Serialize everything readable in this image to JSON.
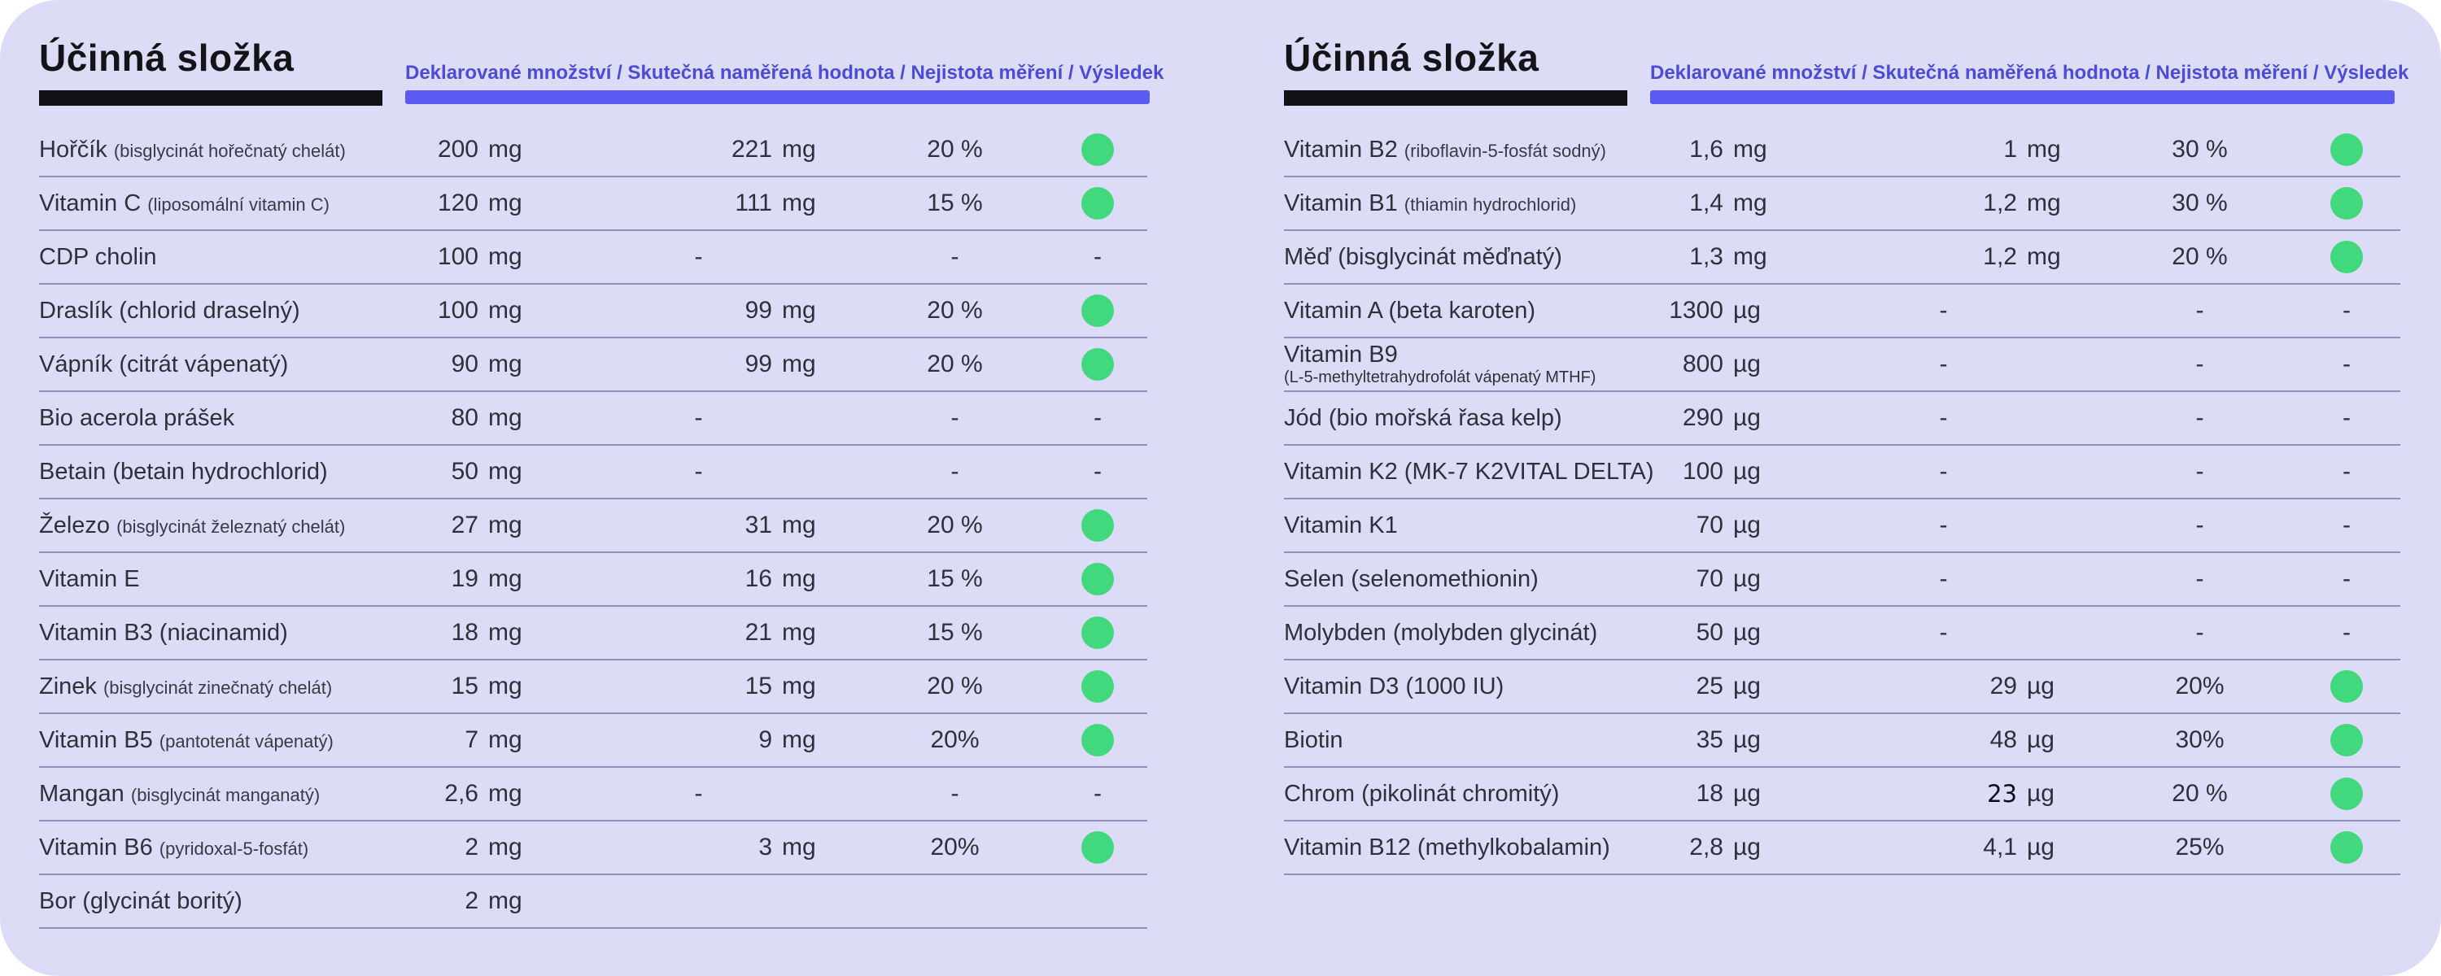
{
  "page": {
    "background": "#ffffff",
    "panel_color": "#dcdcf6",
    "accent_bar_color": "#5b5bf2",
    "header_text_color": "#4b4bd4",
    "pass_dot_color": "#42d87e",
    "pass_dot_meaning": "result-ok-indicator"
  },
  "tables": [
    {
      "title": "Účinná složka",
      "columns_header": "Deklarované množství / Skutečná naměřená hodnota / Nejistota měření / Výsledek",
      "rows": [
        {
          "name": "Hořčík",
          "detail": "(bisglycinát hořečnatý chelát)",
          "detail_style": "small",
          "declared_value": "200",
          "declared_unit": "mg",
          "measured_value": "221",
          "measured_unit": "mg",
          "uncertainty": "20 %",
          "result": "pass"
        },
        {
          "name": "Vitamin C",
          "detail": "(liposomální vitamin C)",
          "detail_style": "small",
          "declared_value": "120",
          "declared_unit": "mg",
          "measured_value": "111",
          "measured_unit": "mg",
          "uncertainty": "15 %",
          "result": "pass"
        },
        {
          "name": "CDP cholin",
          "detail": "",
          "detail_style": "none",
          "declared_value": "100",
          "declared_unit": "mg",
          "measured_value": "-",
          "measured_unit": "",
          "uncertainty": "-",
          "result": "dash"
        },
        {
          "name": "Draslík",
          "detail": "(chlorid draselný)",
          "detail_style": "inline",
          "declared_value": "100",
          "declared_unit": "mg",
          "measured_value": "99",
          "measured_unit": "mg",
          "uncertainty": "20 %",
          "result": "pass"
        },
        {
          "name": "Vápník",
          "detail": "(citrát vápenatý)",
          "detail_style": "inline",
          "declared_value": "90",
          "declared_unit": "mg",
          "measured_value": "99",
          "measured_unit": "mg",
          "uncertainty": "20 %",
          "result": "pass"
        },
        {
          "name": "Bio acerola prášek",
          "detail": "",
          "detail_style": "none",
          "declared_value": "80",
          "declared_unit": "mg",
          "measured_value": "-",
          "measured_unit": "",
          "uncertainty": "-",
          "result": "dash"
        },
        {
          "name": "Betain",
          "detail": "(betain hydrochlorid)",
          "detail_style": "inline",
          "declared_value": "50",
          "declared_unit": "mg",
          "measured_value": "-",
          "measured_unit": "",
          "uncertainty": "-",
          "result": "dash"
        },
        {
          "name": "Železo",
          "detail": "(bisglycinát železnatý chelát)",
          "detail_style": "small",
          "declared_value": "27",
          "declared_unit": "mg",
          "measured_value": "31",
          "measured_unit": "mg",
          "uncertainty": "20 %",
          "result": "pass"
        },
        {
          "name": "Vitamin E",
          "detail": "",
          "detail_style": "none",
          "declared_value": "19",
          "declared_unit": "mg",
          "measured_value": "16",
          "measured_unit": "mg",
          "uncertainty": "15 %",
          "result": "pass"
        },
        {
          "name": "Vitamin B3",
          "detail": "(niacinamid)",
          "detail_style": "inline",
          "declared_value": "18",
          "declared_unit": "mg",
          "measured_value": "21",
          "measured_unit": "mg",
          "uncertainty": "15 %",
          "result": "pass"
        },
        {
          "name": "Zinek",
          "detail": "(bisglycinát zinečnatý chelát)",
          "detail_style": "small",
          "declared_value": "15",
          "declared_unit": "mg",
          "measured_value": "15",
          "measured_unit": "mg",
          "uncertainty": "20 %",
          "result": "pass"
        },
        {
          "name": "Vitamin B5",
          "detail": "(pantotenát vápenatý)",
          "detail_style": "small",
          "declared_value": "7",
          "declared_unit": "mg",
          "measured_value": "9",
          "measured_unit": "mg",
          "uncertainty": "20%",
          "result": "pass"
        },
        {
          "name": "Mangan",
          "detail": "(bisglycinát manganatý)",
          "detail_style": "small",
          "declared_value": "2,6",
          "declared_unit": "mg",
          "measured_value": "-",
          "measured_unit": "",
          "uncertainty": "-",
          "result": "dash"
        },
        {
          "name": "Vitamin B6",
          "detail": "(pyridoxal-5-fosfát)",
          "detail_style": "small",
          "declared_value": "2",
          "declared_unit": "mg",
          "measured_value": "3",
          "measured_unit": "mg",
          "uncertainty": "20%",
          "result": "pass"
        },
        {
          "name": "Bor",
          "detail": "(glycinát boritý)",
          "detail_style": "inline",
          "declared_value": "2",
          "declared_unit": "mg",
          "measured_value": "",
          "measured_unit": "",
          "uncertainty": "",
          "result": "none"
        }
      ]
    },
    {
      "title": "Účinná složka",
      "columns_header": "Deklarované množství / Skutečná naměřená hodnota / Nejistota měření / Výsledek",
      "rows": [
        {
          "name": "Vitamin B2",
          "detail": "(riboflavin-5-fosfát sodný)",
          "detail_style": "small",
          "declared_value": "1,6",
          "declared_unit": "mg",
          "measured_value": "1",
          "measured_unit": "mg",
          "uncertainty": "30 %",
          "result": "pass"
        },
        {
          "name": "Vitamin B1",
          "detail": "(thiamin hydrochlorid)",
          "detail_style": "small",
          "declared_value": "1,4",
          "declared_unit": "mg",
          "measured_value": "1,2",
          "measured_unit": "mg",
          "uncertainty": "30 %",
          "result": "pass"
        },
        {
          "name": "Měď",
          "detail": "(bisglycinát měďnatý)",
          "detail_style": "inline",
          "declared_value": "1,3",
          "declared_unit": "mg",
          "measured_value": "1,2",
          "measured_unit": "mg",
          "uncertainty": "20 %",
          "result": "pass"
        },
        {
          "name": "Vitamin A",
          "detail": "(beta karoten)",
          "detail_style": "inline",
          "declared_value": "1300",
          "declared_unit": "µg",
          "measured_value": "-",
          "measured_unit": "",
          "uncertainty": "-",
          "result": "dash"
        },
        {
          "name": "Vitamin B9",
          "detail": "(L-5-methyltetrahydrofolát vápenatý MTHF)",
          "detail_style": "below",
          "declared_value": "800",
          "declared_unit": "µg",
          "measured_value": "-",
          "measured_unit": "",
          "uncertainty": "-",
          "result": "dash"
        },
        {
          "name": "Jód",
          "detail": "(bio mořská řasa kelp)",
          "detail_style": "inline",
          "declared_value": "290",
          "declared_unit": "µg",
          "measured_value": "-",
          "measured_unit": "",
          "uncertainty": "-",
          "result": "dash"
        },
        {
          "name": "Vitamin K2",
          "detail": "(MK-7 K2VITAL DELTA)",
          "detail_style": "inline",
          "declared_value": "100",
          "declared_unit": "µg",
          "measured_value": "-",
          "measured_unit": "",
          "uncertainty": "-",
          "result": "dash"
        },
        {
          "name": "Vitamin K1",
          "detail": "",
          "detail_style": "none",
          "declared_value": "70",
          "declared_unit": "µg",
          "measured_value": "-",
          "measured_unit": "",
          "uncertainty": "-",
          "result": "dash"
        },
        {
          "name": "Selen",
          "detail": "(selenomethionin)",
          "detail_style": "inline",
          "declared_value": "70",
          "declared_unit": "µg",
          "measured_value": "-",
          "measured_unit": "",
          "uncertainty": "-",
          "result": "dash"
        },
        {
          "name": "Molybden",
          "detail": "(molybden glycinát)",
          "detail_style": "inline",
          "declared_value": "50",
          "declared_unit": "µg",
          "measured_value": "-",
          "measured_unit": "",
          "uncertainty": "-",
          "result": "dash"
        },
        {
          "name": "Vitamin D3",
          "detail": "(1000 IU)",
          "detail_style": "inline",
          "declared_value": "25",
          "declared_unit": "µg",
          "measured_value": "29",
          "measured_unit": "µg",
          "uncertainty": "20%",
          "result": "pass"
        },
        {
          "name": "Biotin",
          "detail": "",
          "detail_style": "none",
          "declared_value": "35",
          "declared_unit": "µg",
          "measured_value": "48",
          "measured_unit": "µg",
          "uncertainty": "30%",
          "result": "pass"
        },
        {
          "name": "Chrom",
          "detail": "(pikolinát chromitý)",
          "detail_style": "inline",
          "declared_value": "18",
          "declared_unit": "µg",
          "measured_value": "23",
          "measured_unit": "µg",
          "measured_alt_font": true,
          "uncertainty": "20 %",
          "result": "pass"
        },
        {
          "name": "Vitamin B12",
          "detail": "(methylkobalamin)",
          "detail_style": "inline",
          "declared_value": "2,8",
          "declared_unit": "µg",
          "measured_value": "4,1",
          "measured_unit": "µg",
          "uncertainty": "25%",
          "result": "pass"
        }
      ]
    }
  ]
}
